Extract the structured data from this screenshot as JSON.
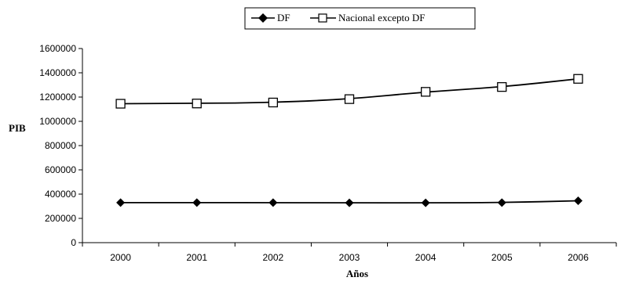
{
  "chart_data": {
    "type": "line",
    "categories": [
      "2000",
      "2001",
      "2002",
      "2003",
      "2004",
      "2005",
      "2006"
    ],
    "series": [
      {
        "name": "DF",
        "marker": "diamond-filled",
        "color": "#000000",
        "values": [
          330000,
          330000,
          330000,
          328000,
          328000,
          330000,
          345000
        ]
      },
      {
        "name": "Nacional excepto DF",
        "marker": "square-open",
        "color": "#000000",
        "values": [
          1145000,
          1147000,
          1155000,
          1183000,
          1243000,
          1283000,
          1350000
        ]
      }
    ],
    "xlabel": "Años",
    "ylabel": "PIB",
    "ylim": [
      0,
      1600000
    ],
    "yticks": [
      "0",
      "200000",
      "400000",
      "600000",
      "800000",
      "1000000",
      "1200000",
      "1400000",
      "1600000"
    ],
    "grid": false,
    "legend_position": "top-center"
  }
}
